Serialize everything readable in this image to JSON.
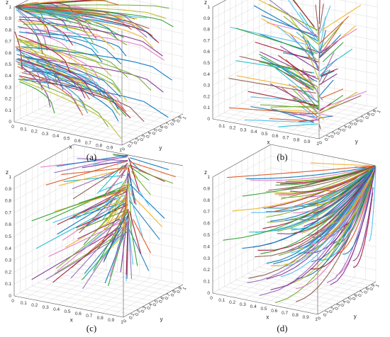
{
  "figure": {
    "panels": [
      {
        "id": "a",
        "caption": "(a)"
      },
      {
        "id": "b",
        "caption": "(b)"
      },
      {
        "id": "c",
        "caption": "(c)"
      },
      {
        "id": "d",
        "caption": "(d)"
      }
    ]
  },
  "chart_data": [
    {
      "type": "line3d",
      "panel": "(a)",
      "xlabel": "x",
      "ylabel": "y",
      "zlabel": "z",
      "xlim": [
        0,
        1
      ],
      "ylim": [
        0,
        1
      ],
      "zlim": [
        0,
        1
      ],
      "x_ticks": [
        "0",
        "0.1",
        "0.2",
        "0.3",
        "0.4",
        "0.5",
        "0.6",
        "0.7",
        "0.8",
        "0.9",
        "1"
      ],
      "y_ticks": [
        "0",
        "0.1",
        "0.2",
        "0.3",
        "0.4",
        "0.5",
        "0.6",
        "0.7",
        "0.8",
        "0.9",
        "1"
      ],
      "z_ticks": [
        "0",
        "0.1",
        "0.2",
        "0.3",
        "0.4",
        "0.5",
        "0.6",
        "0.7",
        "0.8",
        "0.9",
        "1"
      ],
      "grid": true,
      "description": "Many multicolored trajectories starting at random points; they converge toward the origin region and the z-axis, curving from the x=0 edge out along the x axis at various heights.",
      "attractor": [
        0,
        0,
        1
      ]
    },
    {
      "type": "line3d",
      "panel": "(b)",
      "xlabel": "x",
      "ylabel": "y",
      "zlabel": "z",
      "xlim": [
        0,
        1
      ],
      "ylim": [
        0,
        1
      ],
      "zlim": [
        0,
        1
      ],
      "x_ticks": [
        "0.1",
        "0.2",
        "0.3",
        "0.4",
        "0.5",
        "0.6",
        "0.7",
        "0.8",
        "0.9",
        "1"
      ],
      "y_ticks": [
        "0",
        "0.1",
        "0.2",
        "0.3",
        "0.4",
        "0.5",
        "0.6",
        "0.7",
        "0.8",
        "0.9",
        "1"
      ],
      "z_ticks": [
        "0",
        "0.1",
        "0.2",
        "0.3",
        "0.4",
        "0.5",
        "0.6",
        "0.7",
        "0.8",
        "0.9",
        "1"
      ],
      "grid": true,
      "description": "Multicolored trajectories converging to a vertical line at x=1, y=0.",
      "attractor": [
        1,
        0,
        0.85
      ]
    },
    {
      "type": "line3d",
      "panel": "(c)",
      "xlabel": "x",
      "ylabel": "y",
      "zlabel": "z",
      "xlim": [
        0,
        1
      ],
      "ylim": [
        0,
        1
      ],
      "zlim": [
        0,
        1
      ],
      "x_ticks": [
        "0",
        "0.1",
        "0.2",
        "0.3",
        "0.4",
        "0.5",
        "0.6",
        "0.7",
        "0.8",
        "0.9",
        "1"
      ],
      "y_ticks": [
        "0",
        "0.1",
        "0.2",
        "0.3",
        "0.4",
        "0.5",
        "0.6",
        "0.7",
        "0.8",
        "0.9",
        "1"
      ],
      "z_ticks": [
        "0",
        "0.1",
        "0.2",
        "0.3",
        "0.4",
        "0.5",
        "0.6",
        "0.7",
        "0.8",
        "0.9",
        "1"
      ],
      "grid": true,
      "description": "Multicolored trajectories converging toward a vertical line near x=0.5, y=1 on the back plane.",
      "attractor": [
        0.5,
        1,
        1
      ]
    },
    {
      "type": "line3d",
      "panel": "(d)",
      "xlabel": "x",
      "ylabel": "y",
      "zlabel": "z",
      "xlim": [
        0,
        1
      ],
      "ylim": [
        0,
        1
      ],
      "zlim": [
        0,
        1
      ],
      "x_ticks": [
        "0",
        "0.1",
        "0.2",
        "0.3",
        "0.4",
        "0.5",
        "0.6",
        "0.7",
        "0.8",
        "0.9",
        "1"
      ],
      "y_ticks": [
        "0",
        "0.1",
        "0.2",
        "0.3",
        "0.4",
        "0.5",
        "0.6",
        "0.7",
        "0.8",
        "0.9",
        "1"
      ],
      "z_ticks": [
        "0",
        "0.1",
        "0.2",
        "0.3",
        "0.4",
        "0.5",
        "0.6",
        "0.7",
        "0.8",
        "0.9",
        "1"
      ],
      "grid": true,
      "description": "Multicolored trajectories all converging to the corner point x=1, y=1, z=1.",
      "attractor": [
        1,
        1,
        1
      ]
    }
  ],
  "style": {
    "line_colors": [
      "#0072bd",
      "#d95319",
      "#edb120",
      "#7e2f8e",
      "#77ac30",
      "#4dbeee",
      "#a2142f",
      "#1f77b4",
      "#2ca02c",
      "#9467bd",
      "#8c564b",
      "#e377c2",
      "#17becf",
      "#bcbd22"
    ],
    "grid_color": "#d9d9d9",
    "axis_color": "#555555"
  }
}
